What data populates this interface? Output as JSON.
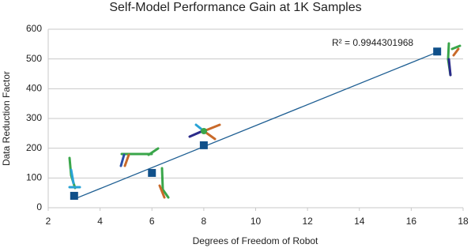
{
  "chart_data": {
    "type": "scatter",
    "title": "Self-Model Performance Gain at 1K Samples",
    "xlabel": "Degrees of Freedom of Robot",
    "ylabel": "Data Reduction Factor",
    "annotation": "R² = 0.9944301968",
    "x": [
      3,
      6,
      8,
      17
    ],
    "values": [
      40,
      117,
      210,
      525
    ],
    "color": "#10508a",
    "trendline": true,
    "trend_color": "#1f5f93",
    "xlim": [
      2,
      18
    ],
    "xticks": [
      2,
      4,
      6,
      8,
      10,
      12,
      14,
      16,
      18
    ],
    "ylim": [
      0,
      600
    ],
    "yticks": [
      0,
      100,
      200,
      300,
      400,
      500,
      600
    ],
    "grid": true
  }
}
